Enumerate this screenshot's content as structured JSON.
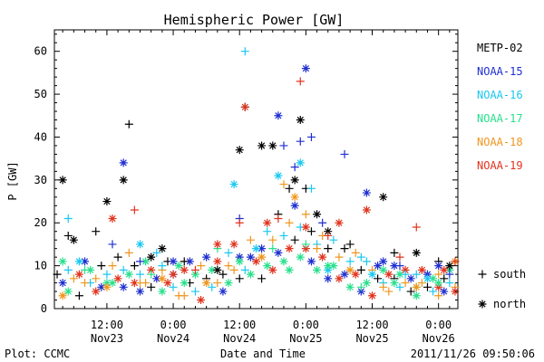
{
  "chart_data": {
    "type": "scatter",
    "title": "Hemispheric Power [GW]",
    "ylabel": "P [GW]",
    "xlabel": "Date and Time",
    "ylim": [
      0,
      65
    ],
    "yticks": [
      0,
      10,
      20,
      30,
      40,
      50,
      60
    ],
    "xlim_hours": [
      -9.5,
      63.5
    ],
    "x_ticks": [
      {
        "hours": 0,
        "line1": "12:00",
        "line2": "Nov23"
      },
      {
        "hours": 12,
        "line1": "0:00",
        "line2": "Nov24"
      },
      {
        "hours": 24,
        "line1": "12:00",
        "line2": "Nov24"
      },
      {
        "hours": 36,
        "line1": "0:00",
        "line2": "Nov25"
      },
      {
        "hours": 48,
        "line1": "12:00",
        "line2": "Nov25"
      },
      {
        "hours": 60,
        "line1": "0:00",
        "line2": "Nov26"
      }
    ],
    "x_reference": "hours after 2011-11-23 12:00 UT",
    "legend_placement": "right",
    "marker_legend": [
      {
        "symbol": "+",
        "label": "south"
      },
      {
        "symbol": "*",
        "label": "north"
      }
    ],
    "series": [
      {
        "name": "METP-02",
        "color": "#000000",
        "points": [
          [
            -8,
            30,
            "n"
          ],
          [
            -7,
            17,
            "s"
          ],
          [
            -6,
            16,
            "n"
          ],
          [
            -2,
            18,
            "s"
          ],
          [
            0,
            25,
            "n"
          ],
          [
            3,
            30,
            "n"
          ],
          [
            4,
            43,
            "s"
          ],
          [
            8,
            12,
            "n"
          ],
          [
            10,
            14,
            "n"
          ],
          [
            14,
            11,
            "s"
          ],
          [
            20,
            9,
            "n"
          ],
          [
            24,
            37,
            "n"
          ],
          [
            25,
            47,
            "s"
          ],
          [
            28,
            38,
            "n"
          ],
          [
            30,
            38,
            "n"
          ],
          [
            33,
            28,
            "s"
          ],
          [
            34,
            30,
            "n"
          ],
          [
            35,
            44,
            "n"
          ],
          [
            36,
            28,
            "s"
          ],
          [
            38,
            22,
            "n"
          ],
          [
            40,
            18,
            "n"
          ],
          [
            44,
            15,
            "s"
          ],
          [
            50,
            26,
            "n"
          ],
          [
            52,
            13,
            "s"
          ],
          [
            56,
            13,
            "n"
          ],
          [
            60,
            11,
            "s"
          ],
          [
            62,
            10,
            "n"
          ]
        ]
      },
      {
        "name": "NOAA-15",
        "color": "#1f2fd0",
        "points": [
          [
            1,
            15,
            "s"
          ],
          [
            3,
            34,
            "n"
          ],
          [
            6,
            11,
            "s"
          ],
          [
            12,
            11,
            "n"
          ],
          [
            24,
            21,
            "s"
          ],
          [
            26,
            12,
            "n"
          ],
          [
            31,
            45,
            "n"
          ],
          [
            32,
            38,
            "s"
          ],
          [
            34,
            33,
            "s"
          ],
          [
            35,
            39,
            "s"
          ],
          [
            36,
            56,
            "n"
          ],
          [
            37,
            40,
            "s"
          ],
          [
            39,
            20,
            "s"
          ],
          [
            43,
            36,
            "s"
          ],
          [
            47,
            27,
            "n"
          ],
          [
            50,
            11,
            "n"
          ],
          [
            53,
            10,
            "s"
          ],
          [
            60,
            10,
            "n"
          ],
          [
            62,
            8,
            "s"
          ]
        ]
      },
      {
        "name": "NOAA-16",
        "color": "#19c8f0",
        "points": [
          [
            -7,
            21,
            "s"
          ],
          [
            -5,
            11,
            "n"
          ],
          [
            6,
            15,
            "n"
          ],
          [
            10,
            10,
            "s"
          ],
          [
            23,
            29,
            "n"
          ],
          [
            25,
            60,
            "s"
          ],
          [
            27,
            14,
            "n"
          ],
          [
            31,
            31,
            "n"
          ],
          [
            35,
            34,
            "n"
          ],
          [
            37,
            28,
            "s"
          ],
          [
            40,
            9,
            "n"
          ],
          [
            46,
            12,
            "s"
          ],
          [
            48,
            8,
            "n"
          ],
          [
            54,
            8,
            "s"
          ],
          [
            58,
            7,
            "n"
          ]
        ]
      },
      {
        "name": "NOAA-17",
        "color": "#28e08c",
        "points": [
          [
            -8,
            11,
            "n"
          ],
          [
            -4,
            9,
            "s"
          ],
          [
            0,
            6,
            "n"
          ],
          [
            8,
            8,
            "s"
          ],
          [
            14,
            6,
            "n"
          ],
          [
            20,
            14,
            "s"
          ],
          [
            24,
            11,
            "n"
          ],
          [
            30,
            14,
            "s"
          ],
          [
            33,
            9,
            "n"
          ],
          [
            36,
            15,
            "s"
          ],
          [
            40,
            10,
            "n"
          ],
          [
            46,
            5,
            "s"
          ],
          [
            52,
            6,
            "n"
          ],
          [
            56,
            5,
            "s"
          ],
          [
            60,
            6,
            "n"
          ]
        ]
      },
      {
        "name": "NOAA-18",
        "color": "#f0961e",
        "points": [
          [
            -8,
            3,
            "n"
          ],
          [
            -4,
            6,
            "s"
          ],
          [
            0,
            5,
            "n"
          ],
          [
            6,
            6,
            "s"
          ],
          [
            10,
            7,
            "n"
          ],
          [
            14,
            3,
            "s"
          ],
          [
            18,
            6,
            "n"
          ],
          [
            22,
            10,
            "s"
          ],
          [
            28,
            12,
            "n"
          ],
          [
            32,
            29,
            "s"
          ],
          [
            34,
            26,
            "n"
          ],
          [
            38,
            14,
            "s"
          ],
          [
            44,
            9,
            "n"
          ],
          [
            50,
            5,
            "s"
          ],
          [
            56,
            5,
            "n"
          ],
          [
            60,
            8,
            "s"
          ],
          [
            63,
            11,
            "n"
          ]
        ]
      },
      {
        "name": "NOAA-19",
        "color": "#e0341e",
        "points": [
          [
            1,
            21,
            "n"
          ],
          [
            5,
            23,
            "s"
          ],
          [
            12,
            8,
            "n"
          ],
          [
            16,
            9,
            "s"
          ],
          [
            20,
            15,
            "n"
          ],
          [
            24,
            20,
            "s"
          ],
          [
            25,
            47,
            "n"
          ],
          [
            29,
            20,
            "n"
          ],
          [
            31,
            21,
            "s"
          ],
          [
            35,
            53,
            "s"
          ],
          [
            36,
            19,
            "n"
          ],
          [
            40,
            17,
            "s"
          ],
          [
            42,
            20,
            "n"
          ],
          [
            47,
            23,
            "n"
          ],
          [
            53,
            12,
            "s"
          ],
          [
            56,
            19,
            "s"
          ],
          [
            61,
            9,
            "n"
          ],
          [
            63,
            11,
            "s"
          ]
        ]
      }
    ],
    "background_cloud": {
      "note": "dense low-value scatter from all satellites between 2 and 18 GW",
      "points": [
        [
          -9,
          8
        ],
        [
          -8,
          6
        ],
        [
          -7,
          9
        ],
        [
          -7,
          4
        ],
        [
          -6,
          7
        ],
        [
          -5,
          8
        ],
        [
          -5,
          3
        ],
        [
          -4,
          11
        ],
        [
          -3,
          6
        ],
        [
          -3,
          9
        ],
        [
          -2,
          7
        ],
        [
          -2,
          4
        ],
        [
          -1,
          10
        ],
        [
          -1,
          5
        ],
        [
          0,
          8
        ],
        [
          1,
          6
        ],
        [
          1,
          10
        ],
        [
          2,
          7
        ],
        [
          2,
          12
        ],
        [
          3,
          5
        ],
        [
          3,
          9
        ],
        [
          4,
          8
        ],
        [
          4,
          13
        ],
        [
          5,
          6
        ],
        [
          5,
          10
        ],
        [
          6,
          4
        ],
        [
          6,
          8
        ],
        [
          7,
          11
        ],
        [
          7,
          6
        ],
        [
          8,
          9
        ],
        [
          8,
          5
        ],
        [
          9,
          7
        ],
        [
          9,
          13
        ],
        [
          10,
          4
        ],
        [
          10,
          9
        ],
        [
          11,
          6
        ],
        [
          11,
          11
        ],
        [
          12,
          8
        ],
        [
          12,
          5
        ],
        [
          13,
          10
        ],
        [
          13,
          3
        ],
        [
          14,
          9
        ],
        [
          15,
          6
        ],
        [
          15,
          11
        ],
        [
          16,
          4
        ],
        [
          16,
          8
        ],
        [
          17,
          10
        ],
        [
          17,
          2
        ],
        [
          18,
          7
        ],
        [
          18,
          12
        ],
        [
          19,
          5
        ],
        [
          19,
          9
        ],
        [
          20,
          6
        ],
        [
          20,
          11
        ],
        [
          21,
          8
        ],
        [
          21,
          4
        ],
        [
          22,
          13
        ],
        [
          22,
          6
        ],
        [
          23,
          9
        ],
        [
          23,
          15
        ],
        [
          24,
          7
        ],
        [
          24,
          12
        ],
        [
          25,
          9
        ],
        [
          26,
          8
        ],
        [
          26,
          16
        ],
        [
          27,
          11
        ],
        [
          28,
          7
        ],
        [
          28,
          14
        ],
        [
          29,
          18
        ],
        [
          29,
          10
        ],
        [
          30,
          16
        ],
        [
          30,
          9
        ],
        [
          31,
          22
        ],
        [
          31,
          13
        ],
        [
          32,
          17
        ],
        [
          32,
          11
        ],
        [
          33,
          20
        ],
        [
          33,
          14
        ],
        [
          34,
          16
        ],
        [
          34,
          24
        ],
        [
          35,
          19
        ],
        [
          35,
          12
        ],
        [
          36,
          22
        ],
        [
          36,
          14
        ],
        [
          37,
          18
        ],
        [
          37,
          11
        ],
        [
          38,
          15
        ],
        [
          38,
          9
        ],
        [
          39,
          17
        ],
        [
          39,
          12
        ],
        [
          40,
          14
        ],
        [
          40,
          7
        ],
        [
          41,
          16
        ],
        [
          41,
          10
        ],
        [
          42,
          12
        ],
        [
          42,
          7
        ],
        [
          43,
          14
        ],
        [
          43,
          8
        ],
        [
          44,
          11
        ],
        [
          44,
          5
        ],
        [
          45,
          13
        ],
        [
          45,
          8
        ],
        [
          46,
          9
        ],
        [
          46,
          4
        ],
        [
          47,
          11
        ],
        [
          47,
          6
        ],
        [
          48,
          9
        ],
        [
          48,
          3
        ],
        [
          49,
          7
        ],
        [
          49,
          10
        ],
        [
          50,
          6
        ],
        [
          50,
          9
        ],
        [
          51,
          4
        ],
        [
          51,
          8
        ],
        [
          52,
          7
        ],
        [
          52,
          10
        ],
        [
          53,
          5
        ],
        [
          53,
          8
        ],
        [
          54,
          6
        ],
        [
          54,
          9
        ],
        [
          55,
          4
        ],
        [
          55,
          7
        ],
        [
          56,
          8
        ],
        [
          56,
          3
        ],
        [
          57,
          6
        ],
        [
          57,
          9
        ],
        [
          58,
          5
        ],
        [
          58,
          8
        ],
        [
          59,
          4
        ],
        [
          59,
          7
        ],
        [
          60,
          3
        ],
        [
          60,
          5
        ],
        [
          61,
          7
        ],
        [
          61,
          4
        ],
        [
          62,
          6
        ],
        [
          62,
          9
        ],
        [
          63,
          5
        ],
        [
          63,
          4
        ]
      ]
    }
  },
  "footer": {
    "left": "Plot: CCMC",
    "right": "2011/11/26 09:50:06"
  }
}
